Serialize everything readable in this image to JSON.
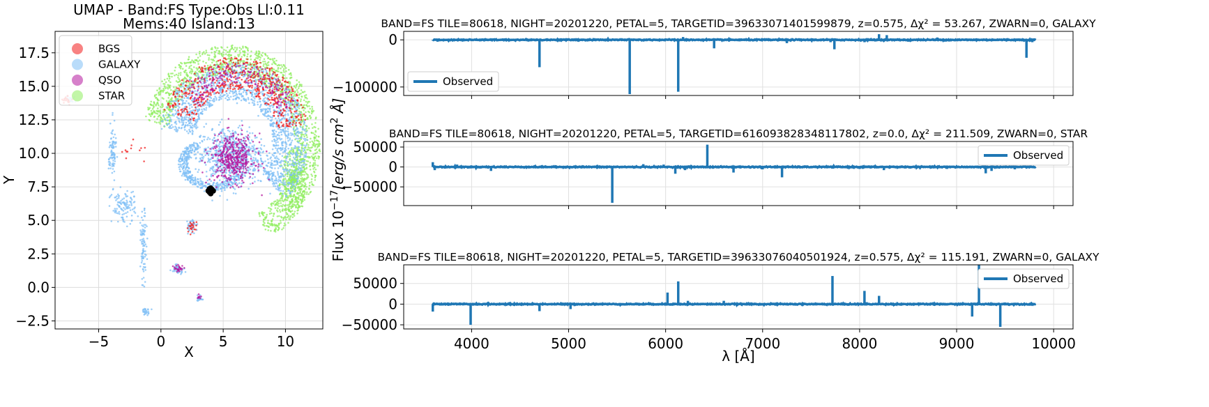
{
  "figure": {
    "shared_ylabel": "Flux $10^{-17}[erg/s\\,cm^2\\,\\AA]$",
    "shared_xlabel": "λ [Å]"
  },
  "chart_data": [
    {
      "type": "scatter",
      "title_line1": "UMAP  -  Band:FS Type:Obs Ll:0.11",
      "title_line2": "Mems:40 Island:13",
      "xlabel": "X",
      "ylabel": "Y",
      "xlim": [
        -8.5,
        13
      ],
      "ylim": [
        -3.1,
        19.1
      ],
      "xticks": [
        -5,
        0,
        5,
        10
      ],
      "yticks": [
        -2.5,
        0.0,
        2.5,
        5.0,
        7.5,
        10.0,
        12.5,
        15.0,
        17.5
      ],
      "xtick_labels": [
        "−5",
        "0",
        "5",
        "10"
      ],
      "ytick_labels": [
        "−2.5",
        "0.0",
        "2.5",
        "5.0",
        "7.5",
        "10.0",
        "12.5",
        "15.0",
        "17.5"
      ],
      "grid": true,
      "legend_position": "top-left",
      "series": [
        {
          "name": "BGS",
          "color": "#f21c1c"
        },
        {
          "name": "GALAXY",
          "color": "#7fbff5"
        },
        {
          "name": "QSO",
          "color": "#b5179e"
        },
        {
          "name": "STAR",
          "color": "#90ee60"
        }
      ],
      "highlight": {
        "color": "#000000",
        "points": [
          [
            3.9,
            7.1
          ],
          [
            4.1,
            7.3
          ],
          [
            4.0,
            7.0
          ],
          [
            3.8,
            7.2
          ],
          [
            4.2,
            7.2
          ],
          [
            4.0,
            7.4
          ],
          [
            3.9,
            7.35
          ]
        ]
      }
    },
    {
      "type": "line",
      "title": "BAND=FS TILE=80618, NIGHT=20201220, PETAL=5, TARGETID=39633071401599879, z=0.575, Δχ² = 53.267, ZWARN=0, GALAXY",
      "xlim": [
        3300,
        10200
      ],
      "ylim": [
        -118000,
        18000
      ],
      "yticks": [
        0,
        -100000
      ],
      "ytick_labels": [
        "0",
        "−100000"
      ],
      "legend": "Observed",
      "legend_position": "lower-left",
      "color": "#1f77b4",
      "spikes": [
        [
          3600,
          -1500
        ],
        [
          3650,
          -4000
        ],
        [
          4700,
          -58000
        ],
        [
          5630,
          -115000
        ],
        [
          6130,
          -110000
        ],
        [
          6180,
          6000
        ],
        [
          6500,
          -18000
        ],
        [
          7250,
          -7000
        ],
        [
          7700,
          -5000
        ],
        [
          7740,
          -20000
        ],
        [
          8050,
          -5000
        ],
        [
          8200,
          12000
        ],
        [
          8280,
          10000
        ],
        [
          8500,
          -4000
        ],
        [
          8800,
          5000
        ],
        [
          9720,
          -38000
        ],
        [
          9780,
          -5000
        ]
      ]
    },
    {
      "type": "line",
      "title": "BAND=FS TILE=80618, NIGHT=20201220, PETAL=5, TARGETID=616093828348117802, z=0.0, Δχ² = 211.509, ZWARN=0, STAR",
      "xlim": [
        3300,
        10200
      ],
      "ylim": [
        -97000,
        64000
      ],
      "yticks": [
        50000,
        0,
        -50000
      ],
      "ytick_labels": [
        "50000",
        "0",
        "−50000"
      ],
      "legend": "Observed",
      "legend_position": "upper-right",
      "color": "#1f77b4",
      "spikes": [
        [
          3600,
          12000
        ],
        [
          3620,
          -8000
        ],
        [
          3850,
          6000
        ],
        [
          4200,
          -10000
        ],
        [
          5450,
          -90000
        ],
        [
          5770,
          7000
        ],
        [
          5980,
          6000
        ],
        [
          6100,
          -17000
        ],
        [
          6200,
          -8000
        ],
        [
          6430,
          56000
        ],
        [
          6700,
          -14000
        ],
        [
          7000,
          -6000
        ],
        [
          7200,
          -26000
        ],
        [
          8000,
          -5000
        ],
        [
          8250,
          -8000
        ],
        [
          8900,
          -5000
        ],
        [
          9300,
          -16000
        ],
        [
          9360,
          -10000
        ],
        [
          9600,
          -6000
        ]
      ]
    },
    {
      "type": "line",
      "title": "BAND=FS TILE=80618, NIGHT=20201220, PETAL=5, TARGETID=39633076040501924, z=0.575, Δχ² = 115.191, ZWARN=0, GALAXY",
      "xlabel": "λ [Å]",
      "xlim": [
        3300,
        10200
      ],
      "ylim": [
        -60000,
        95000
      ],
      "xticks": [
        4000,
        5000,
        6000,
        7000,
        8000,
        9000,
        10000
      ],
      "xtick_labels": [
        "4000",
        "5000",
        "6000",
        "7000",
        "8000",
        "9000",
        "10000"
      ],
      "yticks": [
        50000,
        0,
        -50000
      ],
      "ytick_labels": [
        "50000",
        "0",
        "−50000"
      ],
      "legend": "Observed",
      "legend_position": "upper-right",
      "color": "#1f77b4",
      "spikes": [
        [
          3600,
          -18000
        ],
        [
          3990,
          -50000
        ],
        [
          4700,
          -17000
        ],
        [
          5020,
          -12000
        ],
        [
          6020,
          28000
        ],
        [
          6130,
          55000
        ],
        [
          6230,
          8000
        ],
        [
          6600,
          8000
        ],
        [
          7720,
          68000
        ],
        [
          8050,
          32000
        ],
        [
          8200,
          20000
        ],
        [
          9160,
          -30000
        ],
        [
          9230,
          95000
        ],
        [
          9450,
          -55000
        ],
        [
          9500,
          4000
        ]
      ]
    }
  ]
}
